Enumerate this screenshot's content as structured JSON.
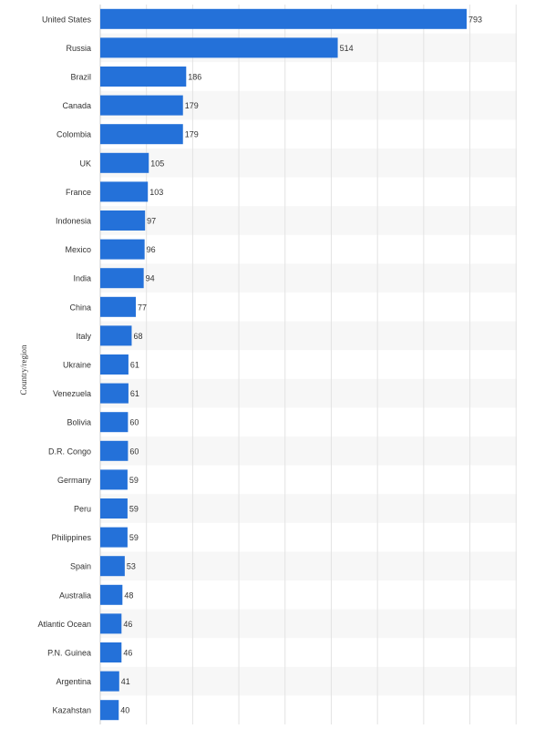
{
  "chart_data": {
    "type": "bar",
    "orientation": "horizontal",
    "title": "",
    "xlabel": "",
    "ylabel": "Country/region",
    "categories": [
      "United States",
      "Russia",
      "Brazil",
      "Canada",
      "Colombia",
      "UK",
      "France",
      "Indonesia",
      "Mexico",
      "India",
      "China",
      "Italy",
      "Ukraine",
      "Venezuela",
      "Bolivia",
      "D.R. Congo",
      "Germany",
      "Peru",
      "Philippines",
      "Spain",
      "Australia",
      "Atlantic Ocean",
      "P.N. Guinea",
      "Argentina",
      "Kazahstan"
    ],
    "values": [
      793,
      514,
      186,
      179,
      179,
      105,
      103,
      97,
      96,
      94,
      77,
      68,
      61,
      61,
      60,
      60,
      59,
      59,
      59,
      53,
      48,
      46,
      46,
      41,
      40
    ],
    "xlim": [
      0,
      900
    ],
    "grid": true,
    "colors": {
      "bar": "#2471d9",
      "grid": "#e3e3e3",
      "band": "#f7f7f7",
      "text": "#333333"
    }
  }
}
